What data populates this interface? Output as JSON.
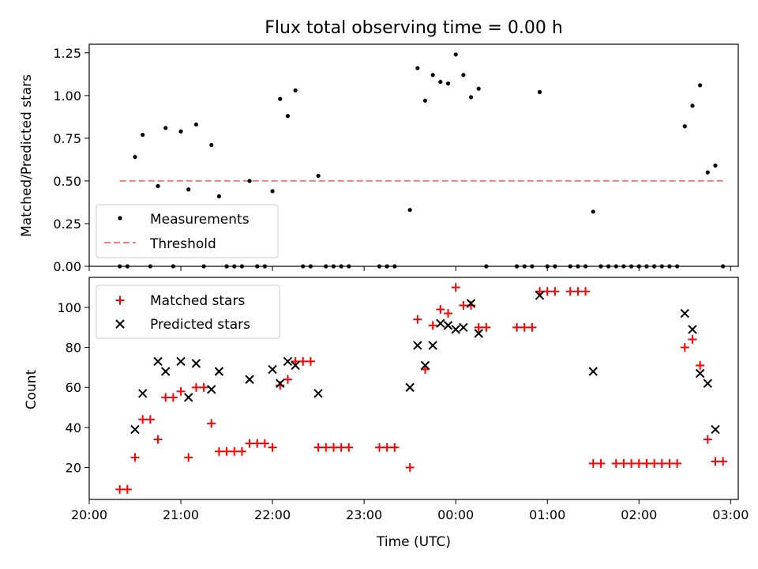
{
  "chart_data": [
    {
      "type": "scatter",
      "title": "Flux total observing time = 0.00 h",
      "xlabel": "",
      "ylabel": "Matched/Predicted stars",
      "xlim": [
        "20:00",
        "03:05"
      ],
      "ylim": [
        0,
        1.3
      ],
      "xticks": [
        "20:00",
        "21:00",
        "22:00",
        "23:00",
        "00:00",
        "01:00",
        "02:00",
        "03:00"
      ],
      "yticks": [
        "0.00",
        "0.25",
        "0.50",
        "0.75",
        "1.00",
        "1.25"
      ],
      "legend": {
        "position": "lower-left",
        "entries": [
          "Measurements",
          "Threshold"
        ]
      },
      "threshold": {
        "name": "Threshold",
        "y": 0.5,
        "x_start": "20:20",
        "x_end": "02:55",
        "color": "#f08080"
      },
      "series": [
        {
          "name": "Measurements",
          "color": "#000000",
          "points": [
            [
              "20:20",
              0
            ],
            [
              "20:25",
              0
            ],
            [
              "20:30",
              0.64
            ],
            [
              "20:35",
              0.77
            ],
            [
              "20:40",
              0
            ],
            [
              "20:45",
              0.47
            ],
            [
              "20:50",
              0.81
            ],
            [
              "20:55",
              0
            ],
            [
              "21:00",
              0.79
            ],
            [
              "21:05",
              0.45
            ],
            [
              "21:10",
              0.83
            ],
            [
              "21:15",
              0
            ],
            [
              "21:20",
              0.71
            ],
            [
              "21:25",
              0.41
            ],
            [
              "21:30",
              0
            ],
            [
              "21:35",
              0
            ],
            [
              "21:40",
              0
            ],
            [
              "21:45",
              0.5
            ],
            [
              "21:50",
              0
            ],
            [
              "21:55",
              0
            ],
            [
              "22:00",
              0.44
            ],
            [
              "22:05",
              0.98
            ],
            [
              "22:10",
              0.88
            ],
            [
              "22:15",
              1.03
            ],
            [
              "22:20",
              0
            ],
            [
              "22:25",
              0
            ],
            [
              "22:30",
              0.53
            ],
            [
              "22:35",
              0
            ],
            [
              "22:40",
              0
            ],
            [
              "22:45",
              0
            ],
            [
              "22:50",
              0
            ],
            [
              "23:10",
              0
            ],
            [
              "23:15",
              0
            ],
            [
              "23:20",
              0
            ],
            [
              "23:30",
              0.33
            ],
            [
              "23:35",
              1.16
            ],
            [
              "23:40",
              0.97
            ],
            [
              "23:45",
              1.12
            ],
            [
              "23:50",
              1.08
            ],
            [
              "23:55",
              1.07
            ],
            [
              "00:00",
              1.24
            ],
            [
              "00:05",
              1.12
            ],
            [
              "00:10",
              0.99
            ],
            [
              "00:15",
              1.04
            ],
            [
              "00:20",
              0
            ],
            [
              "00:40",
              0
            ],
            [
              "00:45",
              0
            ],
            [
              "00:50",
              0
            ],
            [
              "00:55",
              1.02
            ],
            [
              "01:00",
              0
            ],
            [
              "01:05",
              0
            ],
            [
              "01:15",
              0
            ],
            [
              "01:20",
              0
            ],
            [
              "01:25",
              0
            ],
            [
              "01:30",
              0.32
            ],
            [
              "01:35",
              0
            ],
            [
              "01:40",
              0
            ],
            [
              "01:45",
              0
            ],
            [
              "01:50",
              0
            ],
            [
              "01:55",
              0
            ],
            [
              "02:00",
              0
            ],
            [
              "02:05",
              0
            ],
            [
              "02:10",
              0
            ],
            [
              "02:15",
              0
            ],
            [
              "02:20",
              0
            ],
            [
              "02:25",
              0
            ],
            [
              "02:30",
              0.82
            ],
            [
              "02:35",
              0.94
            ],
            [
              "02:40",
              1.06
            ],
            [
              "02:45",
              0.55
            ],
            [
              "02:50",
              0.59
            ],
            [
              "02:55",
              0
            ]
          ]
        }
      ]
    },
    {
      "type": "scatter",
      "title": "",
      "xlabel": "Time (UTC)",
      "ylabel": "Count",
      "xlim": [
        "20:00",
        "03:05"
      ],
      "ylim": [
        4,
        115
      ],
      "xticks": [
        "20:00",
        "21:00",
        "22:00",
        "23:00",
        "00:00",
        "01:00",
        "02:00",
        "03:00"
      ],
      "yticks": [
        "20",
        "40",
        "60",
        "80",
        "100"
      ],
      "legend": {
        "position": "upper-left",
        "entries": [
          "Matched stars",
          "Predicted stars"
        ]
      },
      "series": [
        {
          "name": "Matched stars",
          "color": "#ff0000",
          "marker": "plus",
          "points": [
            [
              "20:20",
              9
            ],
            [
              "20:25",
              9
            ],
            [
              "20:30",
              25
            ],
            [
              "20:35",
              44
            ],
            [
              "20:40",
              44
            ],
            [
              "20:45",
              34
            ],
            [
              "20:50",
              55
            ],
            [
              "20:55",
              55
            ],
            [
              "21:00",
              58
            ],
            [
              "21:05",
              25
            ],
            [
              "21:10",
              60
            ],
            [
              "21:15",
              60
            ],
            [
              "21:20",
              42
            ],
            [
              "21:25",
              28
            ],
            [
              "21:30",
              28
            ],
            [
              "21:35",
              28
            ],
            [
              "21:40",
              28
            ],
            [
              "21:45",
              32
            ],
            [
              "21:50",
              32
            ],
            [
              "21:55",
              32
            ],
            [
              "22:00",
              30
            ],
            [
              "22:05",
              61
            ],
            [
              "22:10",
              64
            ],
            [
              "22:15",
              73
            ],
            [
              "22:20",
              73
            ],
            [
              "22:25",
              73
            ],
            [
              "22:30",
              30
            ],
            [
              "22:35",
              30
            ],
            [
              "22:40",
              30
            ],
            [
              "22:45",
              30
            ],
            [
              "22:50",
              30
            ],
            [
              "23:10",
              30
            ],
            [
              "23:15",
              30
            ],
            [
              "23:20",
              30
            ],
            [
              "23:30",
              20
            ],
            [
              "23:35",
              94
            ],
            [
              "23:40",
              69
            ],
            [
              "23:45",
              91
            ],
            [
              "23:50",
              99
            ],
            [
              "23:55",
              97
            ],
            [
              "00:00",
              110
            ],
            [
              "00:05",
              101
            ],
            [
              "00:10",
              101
            ],
            [
              "00:15",
              90
            ],
            [
              "00:20",
              90
            ],
            [
              "00:40",
              90
            ],
            [
              "00:45",
              90
            ],
            [
              "00:50",
              90
            ],
            [
              "00:55",
              108
            ],
            [
              "01:00",
              108
            ],
            [
              "01:05",
              108
            ],
            [
              "01:15",
              108
            ],
            [
              "01:20",
              108
            ],
            [
              "01:25",
              108
            ],
            [
              "01:30",
              22
            ],
            [
              "01:35",
              22
            ],
            [
              "01:45",
              22
            ],
            [
              "01:50",
              22
            ],
            [
              "01:55",
              22
            ],
            [
              "02:00",
              22
            ],
            [
              "02:05",
              22
            ],
            [
              "02:10",
              22
            ],
            [
              "02:15",
              22
            ],
            [
              "02:20",
              22
            ],
            [
              "02:25",
              22
            ],
            [
              "02:30",
              80
            ],
            [
              "02:35",
              84
            ],
            [
              "02:40",
              71
            ],
            [
              "02:45",
              34
            ],
            [
              "02:50",
              23
            ],
            [
              "02:55",
              23
            ]
          ]
        },
        {
          "name": "Predicted stars",
          "color": "#000000",
          "marker": "x",
          "points": [
            [
              "20:30",
              39
            ],
            [
              "20:35",
              57
            ],
            [
              "20:45",
              73
            ],
            [
              "20:50",
              68
            ],
            [
              "21:00",
              73
            ],
            [
              "21:05",
              55
            ],
            [
              "21:10",
              72
            ],
            [
              "21:20",
              59
            ],
            [
              "21:25",
              68
            ],
            [
              "21:45",
              64
            ],
            [
              "22:00",
              69
            ],
            [
              "22:05",
              62
            ],
            [
              "22:10",
              73
            ],
            [
              "22:15",
              71
            ],
            [
              "22:30",
              57
            ],
            [
              "23:30",
              60
            ],
            [
              "23:35",
              81
            ],
            [
              "23:40",
              71
            ],
            [
              "23:45",
              81
            ],
            [
              "23:50",
              92
            ],
            [
              "23:55",
              91
            ],
            [
              "00:00",
              89
            ],
            [
              "00:05",
              90
            ],
            [
              "00:10",
              102
            ],
            [
              "00:15",
              87
            ],
            [
              "00:55",
              106
            ],
            [
              "01:30",
              68
            ],
            [
              "02:30",
              97
            ],
            [
              "02:35",
              89
            ],
            [
              "02:40",
              67
            ],
            [
              "02:45",
              62
            ],
            [
              "02:50",
              39
            ]
          ]
        }
      ]
    }
  ]
}
